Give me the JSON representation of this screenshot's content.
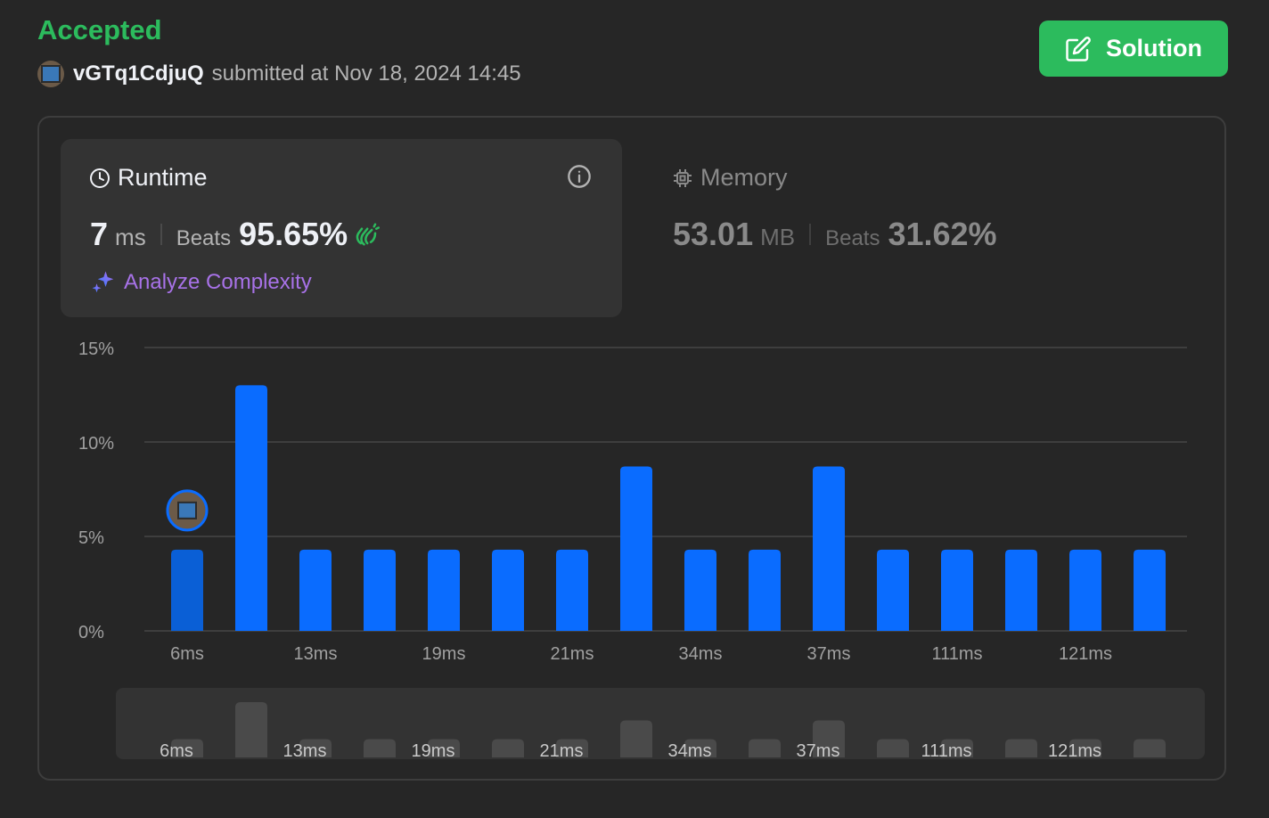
{
  "header": {
    "status": "Accepted",
    "username": "vGTq1CdjuQ",
    "submitted_text": "submitted at Nov 18, 2024 14:45",
    "solution_label": "Solution"
  },
  "runtime": {
    "title": "Runtime",
    "value": "7",
    "unit": "ms",
    "beats_label": "Beats",
    "beats_value": "95.65%",
    "analyze_label": "Analyze Complexity"
  },
  "memory": {
    "title": "Memory",
    "value": "53.01",
    "unit": "MB",
    "beats_label": "Beats",
    "beats_value": "31.62%"
  },
  "colors": {
    "accepted": "#2cbb5d",
    "bar": "#0a6cff",
    "bar_selected": "#0a5fd6",
    "minimap_bar": "#4a4a4a"
  },
  "chart_data": {
    "type": "bar",
    "xlabel": "",
    "ylabel": "",
    "ylim": [
      0,
      15
    ],
    "yticks": [
      "0%",
      "5%",
      "10%",
      "15%"
    ],
    "categories": [
      "6ms",
      "",
      "13ms",
      "",
      "19ms",
      "",
      "21ms",
      "",
      "34ms",
      "",
      "37ms",
      "",
      "111ms",
      "",
      "121ms",
      ""
    ],
    "values": [
      4.3,
      13.0,
      4.3,
      4.3,
      4.3,
      4.3,
      4.3,
      8.7,
      4.3,
      4.3,
      8.7,
      4.3,
      4.3,
      4.3,
      4.3,
      4.3
    ],
    "highlight_index": 0,
    "grid": true
  }
}
